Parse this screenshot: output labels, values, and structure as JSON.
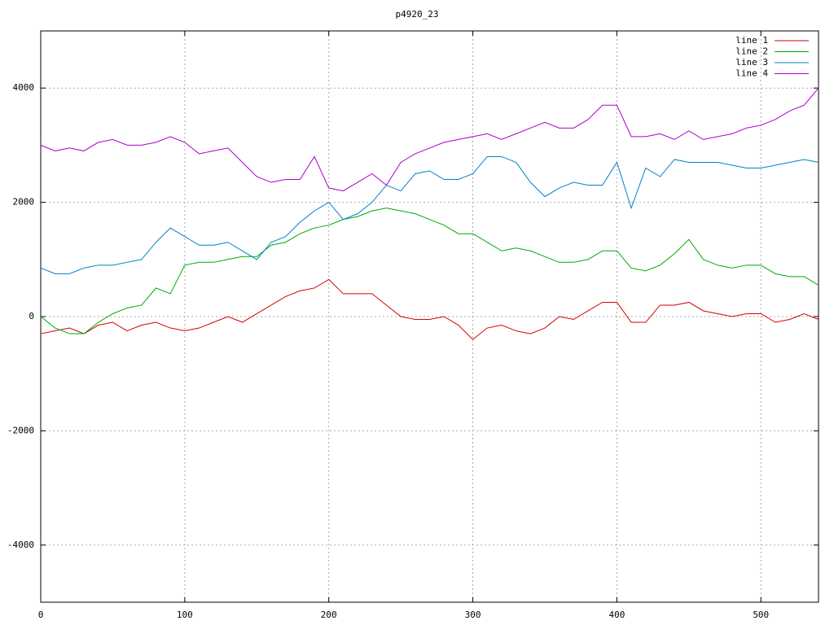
{
  "chart_data": {
    "type": "line",
    "title": "p4920_23",
    "x": [
      0,
      10,
      20,
      30,
      40,
      50,
      60,
      70,
      80,
      90,
      100,
      110,
      120,
      130,
      140,
      150,
      160,
      170,
      180,
      190,
      200,
      210,
      220,
      230,
      240,
      250,
      260,
      270,
      280,
      290,
      300,
      310,
      320,
      330,
      340,
      350,
      360,
      370,
      380,
      390,
      400,
      410,
      420,
      430,
      440,
      450,
      460,
      470,
      480,
      490,
      500,
      510,
      520,
      530,
      540
    ],
    "series": [
      {
        "name": "line 1",
        "color": "#d40000",
        "values": [
          -300,
          -250,
          -200,
          -300,
          -150,
          -100,
          -250,
          -150,
          -100,
          -200,
          -250,
          -200,
          -100,
          0,
          -100,
          50,
          200,
          350,
          450,
          500,
          650,
          400,
          400,
          400,
          200,
          0,
          -50,
          -50,
          0,
          -150,
          -400,
          -200,
          -150,
          -250,
          -300,
          -200,
          0,
          -50,
          100,
          250,
          250,
          -100,
          -100,
          200,
          200,
          250,
          100,
          50,
          0,
          50,
          50,
          -100,
          -50,
          50,
          -50
        ]
      },
      {
        "name": "line 2",
        "color": "#00aa00",
        "values": [
          0,
          -200,
          -300,
          -300,
          -100,
          50,
          150,
          200,
          500,
          400,
          900,
          950,
          950,
          1000,
          1050,
          1050,
          1250,
          1300,
          1450,
          1550,
          1600,
          1700,
          1750,
          1850,
          1900,
          1850,
          1800,
          1700,
          1600,
          1450,
          1450,
          1300,
          1150,
          1200,
          1150,
          1050,
          950,
          950,
          1000,
          1150,
          1150,
          850,
          800,
          900,
          1100,
          1350,
          1000,
          900,
          850,
          900,
          900,
          750,
          700,
          700,
          550
        ]
      },
      {
        "name": "line 3",
        "color": "#0080cc",
        "values": [
          850,
          750,
          750,
          850,
          900,
          900,
          950,
          1000,
          1300,
          1550,
          1400,
          1250,
          1250,
          1300,
          1150,
          1000,
          1300,
          1400,
          1650,
          1850,
          2000,
          1700,
          1800,
          2000,
          2300,
          2200,
          2500,
          2550,
          2400,
          2400,
          2500,
          2800,
          2800,
          2700,
          2350,
          2100,
          2250,
          2350,
          2300,
          2300,
          2700,
          1900,
          2600,
          2450,
          2750,
          2700,
          2700,
          2700,
          2650,
          2600,
          2600,
          2650,
          2700,
          2750,
          2700
        ]
      },
      {
        "name": "line 4",
        "color": "#aa00cc",
        "values": [
          3000,
          2900,
          2950,
          2900,
          3050,
          3100,
          3000,
          3000,
          3050,
          3150,
          3050,
          2850,
          2900,
          2950,
          2700,
          2450,
          2350,
          2400,
          2400,
          2800,
          2250,
          2200,
          2350,
          2500,
          2300,
          2700,
          2850,
          2950,
          3050,
          3100,
          3150,
          3200,
          3100,
          3200,
          3300,
          3400,
          3300,
          3300,
          3450,
          3700,
          3700,
          3150,
          3150,
          3200,
          3100,
          3250,
          3100,
          3150,
          3200,
          3300,
          3350,
          3450,
          3600,
          3700,
          4000
        ]
      }
    ],
    "xlim": [
      0,
      540
    ],
    "xticks": [
      0,
      100,
      200,
      300,
      400,
      500
    ],
    "ylim": [
      -5000,
      5000
    ],
    "yticks": [
      -4000,
      -2000,
      0,
      2000,
      4000
    ],
    "grid": true,
    "legend": "top-right"
  }
}
